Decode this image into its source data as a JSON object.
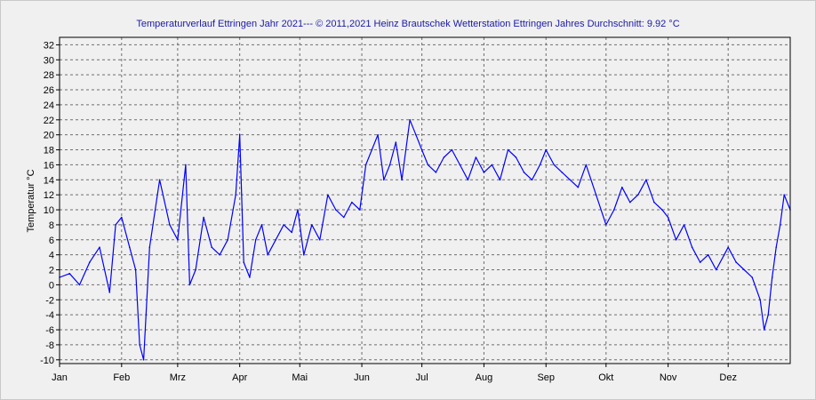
{
  "chart_data": {
    "type": "line",
    "title": "Temperaturverlauf Ettringen Jahr 2021--- © 2011,2021 Heinz Brautschek Wetterstation Ettringen Jahres Durchschnitt: 9.92 °C",
    "xlabel": "",
    "ylabel": "Temperatur °C",
    "ylim": [
      -10.5,
      33
    ],
    "xlim": [
      0,
      365
    ],
    "yticks": [
      -10,
      -8,
      -6,
      -4,
      -2,
      0,
      2,
      4,
      6,
      8,
      10,
      12,
      14,
      16,
      18,
      20,
      22,
      24,
      26,
      28,
      30,
      32
    ],
    "xticks": [
      {
        "label": "Jan",
        "day": 0
      },
      {
        "label": "Feb",
        "day": 31
      },
      {
        "label": "Mrz",
        "day": 59
      },
      {
        "label": "Apr",
        "day": 90
      },
      {
        "label": "Mai",
        "day": 120
      },
      {
        "label": "Jun",
        "day": 151
      },
      {
        "label": "Jul",
        "day": 181
      },
      {
        "label": "Aug",
        "day": 212
      },
      {
        "label": "Sep",
        "day": 243
      },
      {
        "label": "Okt",
        "day": 273
      },
      {
        "label": "Nov",
        "day": 304
      },
      {
        "label": "Dez",
        "day": 334
      }
    ],
    "grid": true,
    "line_color": "#0000ff",
    "series": [
      {
        "name": "",
        "x": [
          0,
          5,
          10,
          15,
          20,
          25,
          28,
          31,
          35,
          38,
          40,
          42,
          45,
          50,
          55,
          59,
          63,
          65,
          68,
          72,
          76,
          80,
          84,
          88,
          90,
          92,
          95,
          98,
          101,
          104,
          108,
          112,
          116,
          119,
          122,
          126,
          130,
          134,
          138,
          142,
          146,
          150,
          153,
          156,
          159,
          162,
          165,
          168,
          171,
          175,
          178,
          181,
          184,
          188,
          192,
          196,
          200,
          204,
          208,
          212,
          216,
          220,
          224,
          228,
          232,
          236,
          240,
          243,
          247,
          251,
          255,
          259,
          263,
          268,
          273,
          277,
          281,
          285,
          289,
          293,
          297,
          301,
          304,
          308,
          312,
          316,
          320,
          324,
          328,
          332,
          334,
          338,
          342,
          346,
          350,
          352,
          354,
          356,
          358,
          360,
          362,
          365
        ],
        "y": [
          1,
          1.5,
          0,
          3,
          5,
          -1,
          8,
          9,
          5,
          2,
          -8,
          -10,
          5,
          14,
          8,
          6,
          16,
          0,
          2,
          9,
          5,
          4,
          6,
          12,
          20,
          3,
          1,
          6,
          8,
          4,
          6,
          8,
          7,
          10,
          4,
          8,
          6,
          12,
          10,
          9,
          11,
          10,
          16,
          18,
          20,
          14,
          16,
          19,
          14,
          22,
          20,
          18,
          16,
          15,
          17,
          18,
          16,
          14,
          17,
          15,
          16,
          14,
          18,
          17,
          15,
          14,
          16,
          18,
          16,
          15,
          14,
          13,
          16,
          12,
          8,
          10,
          13,
          11,
          12,
          14,
          11,
          10,
          9,
          6,
          8,
          5,
          3,
          4,
          2,
          4,
          5,
          3,
          2,
          1,
          -2,
          -6,
          -4,
          1,
          5,
          8,
          12,
          10
        ]
      }
    ]
  }
}
